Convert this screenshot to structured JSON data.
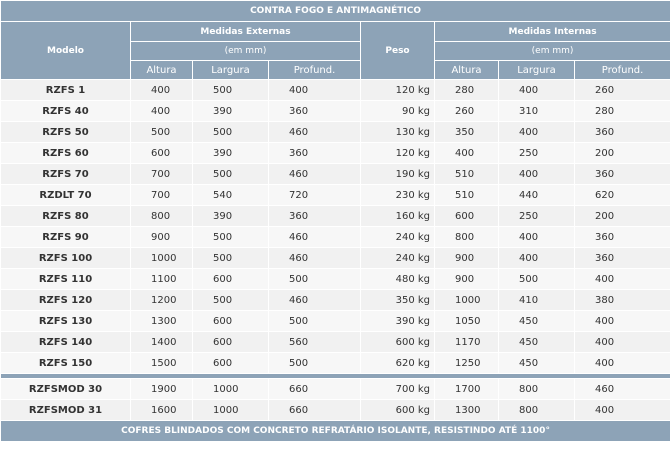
{
  "title": "CONTRA FOGO E ANTIMAGNÉTICO",
  "headers": {
    "modelo": "Modelo",
    "externas": "Medidas Externas",
    "externas_unit": "(em mm)",
    "peso": "Peso",
    "internas": "Medidas Internas",
    "internas_unit": "(em mm)",
    "sub": [
      "Altura",
      "Largura",
      "Profund.",
      "Altura",
      "Largura",
      "Profund."
    ]
  },
  "rows": [
    {
      "model": "RZFS 1",
      "ext": [
        "400",
        "500",
        "400"
      ],
      "peso": "120 kg",
      "int": [
        "280",
        "400",
        "260"
      ]
    },
    {
      "model": "RZFS 40",
      "ext": [
        "400",
        "390",
        "360"
      ],
      "peso": "90 kg",
      "int": [
        "260",
        "310",
        "280"
      ]
    },
    {
      "model": "RZFS 50",
      "ext": [
        "500",
        "500",
        "460"
      ],
      "peso": "130 kg",
      "int": [
        "350",
        "400",
        "360"
      ]
    },
    {
      "model": "RZFS 60",
      "ext": [
        "600",
        "390",
        "360"
      ],
      "peso": "120 kg",
      "int": [
        "400",
        "250",
        "200"
      ]
    },
    {
      "model": "RZFS 70",
      "ext": [
        "700",
        "500",
        "460"
      ],
      "peso": "190 kg",
      "int": [
        "510",
        "400",
        "360"
      ]
    },
    {
      "model": "RZDLT 70",
      "ext": [
        "700",
        "540",
        "720"
      ],
      "peso": "230 kg",
      "int": [
        "510",
        "440",
        "620"
      ]
    },
    {
      "model": "RZFS 80",
      "ext": [
        "800",
        "390",
        "360"
      ],
      "peso": "160 kg",
      "int": [
        "600",
        "250",
        "200"
      ]
    },
    {
      "model": "RZFS 90",
      "ext": [
        "900",
        "500",
        "460"
      ],
      "peso": "240 kg",
      "int": [
        "800",
        "400",
        "360"
      ]
    },
    {
      "model": "RZFS 100",
      "ext": [
        "1000",
        "500",
        "460"
      ],
      "peso": "240 kg",
      "int": [
        "900",
        "400",
        "360"
      ]
    },
    {
      "model": "RZFS 110",
      "ext": [
        "1100",
        "600",
        "500"
      ],
      "peso": "480 kg",
      "int": [
        "900",
        "500",
        "400"
      ]
    },
    {
      "model": "RZFS 120",
      "ext": [
        "1200",
        "500",
        "460"
      ],
      "peso": "350 kg",
      "int": [
        "1000",
        "410",
        "380"
      ]
    },
    {
      "model": "RZFS 130",
      "ext": [
        "1300",
        "600",
        "500"
      ],
      "peso": "390 kg",
      "int": [
        "1050",
        "450",
        "400"
      ]
    },
    {
      "model": "RZFS 140",
      "ext": [
        "1400",
        "600",
        "560"
      ],
      "peso": "600 kg",
      "int": [
        "1170",
        "450",
        "400"
      ]
    },
    {
      "model": "RZFS 150",
      "ext": [
        "1500",
        "600",
        "500"
      ],
      "peso": "620 kg",
      "int": [
        "1250",
        "450",
        "400"
      ]
    }
  ],
  "rows2": [
    {
      "model": "RZFSMOD 30",
      "ext": [
        "1900",
        "1000",
        "660"
      ],
      "peso": "700 kg",
      "int": [
        "1700",
        "800",
        "460"
      ]
    },
    {
      "model": "RZFSMOD 31",
      "ext": [
        "1600",
        "1000",
        "660"
      ],
      "peso": "600 kg",
      "int": [
        "1300",
        "800",
        "400"
      ]
    }
  ],
  "footer": "COFRES BLINDADOS COM CONCRETO REFRATÁRIO ISOLANTE, RESISTINDO ATÉ 1100°"
}
